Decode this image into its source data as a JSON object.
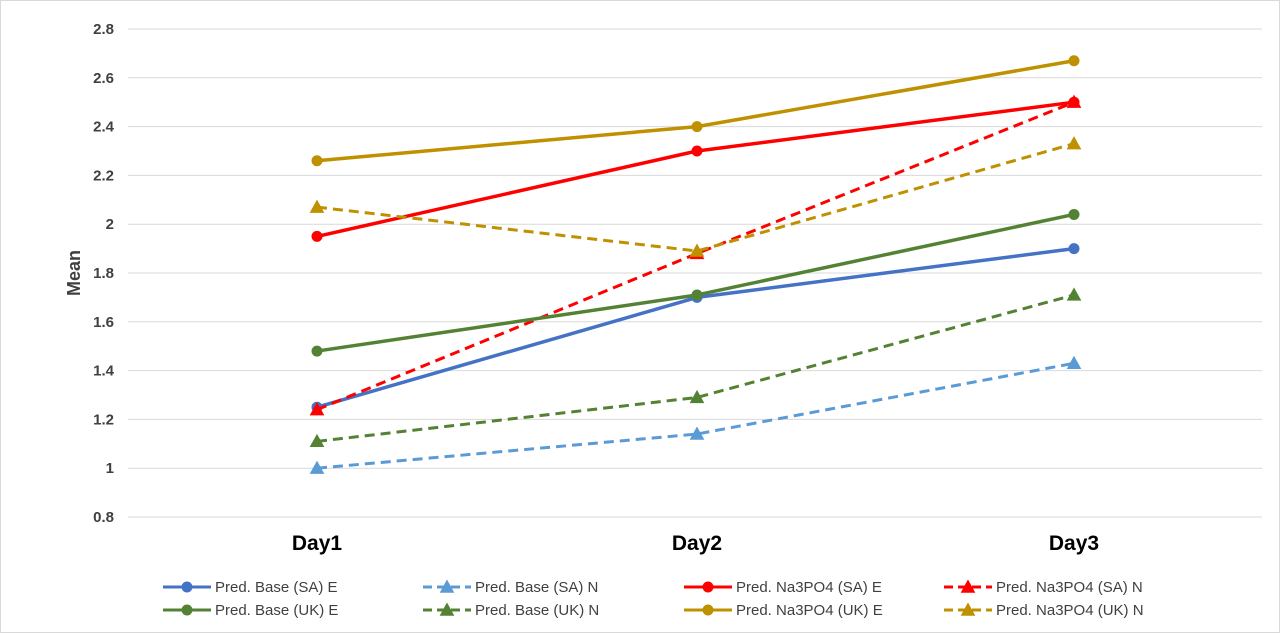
{
  "chart_data": {
    "type": "line",
    "title": "",
    "xlabel": "",
    "ylabel": "Mean",
    "categories": [
      "Day1",
      "Day2",
      "Day3"
    ],
    "ylim": [
      0.8,
      2.8
    ],
    "yticks": [
      0.8,
      1,
      1.2,
      1.4,
      1.6,
      1.8,
      2,
      2.2,
      2.4,
      2.6,
      2.8
    ],
    "grid": true,
    "legend_position": "bottom",
    "series": [
      {
        "name": "Pred. Base (SA) E",
        "values": [
          1.25,
          1.7,
          1.9
        ],
        "color": "#4472C4",
        "dashed": false,
        "marker": "circle"
      },
      {
        "name": "Pred. Base (SA) N",
        "values": [
          1.0,
          1.14,
          1.43
        ],
        "color": "#5B9BD5",
        "dashed": true,
        "marker": "triangle"
      },
      {
        "name": "Pred. Na3PO4 (SA) E",
        "values": [
          1.95,
          2.3,
          2.5
        ],
        "color": "#FF0000",
        "dashed": false,
        "marker": "circle"
      },
      {
        "name": "Pred. Na3PO4 (SA) N",
        "values": [
          1.24,
          1.88,
          2.5
        ],
        "color": "#FF0000",
        "dashed": true,
        "marker": "triangle"
      },
      {
        "name": "Pred. Base (UK) E",
        "values": [
          1.48,
          1.71,
          2.04
        ],
        "color": "#548235",
        "dashed": false,
        "marker": "circle"
      },
      {
        "name": "Pred. Base (UK) N",
        "values": [
          1.11,
          1.29,
          1.71
        ],
        "color": "#548235",
        "dashed": true,
        "marker": "triangle"
      },
      {
        "name": "Pred. Na3PO4 (UK) E",
        "values": [
          2.26,
          2.4,
          2.67
        ],
        "color": "#BF9000",
        "dashed": false,
        "marker": "circle"
      },
      {
        "name": "Pred. Na3PO4 (UK) N",
        "values": [
          2.07,
          1.89,
          2.33
        ],
        "color": "#BF9000",
        "dashed": true,
        "marker": "triangle"
      }
    ]
  }
}
